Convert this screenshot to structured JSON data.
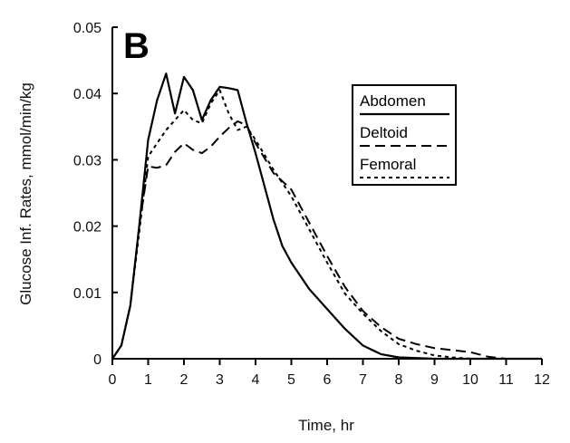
{
  "chart_data": {
    "type": "line",
    "panel_label": "B",
    "xlabel": "Time, hr",
    "ylabel": "Glucose Inf. Rates, mmol/min/kg",
    "xlim": [
      0,
      12
    ],
    "ylim": [
      0,
      0.05
    ],
    "x_ticks": [
      "0",
      "1",
      "2",
      "3",
      "4",
      "5",
      "6",
      "7",
      "8",
      "9",
      "10",
      "11",
      "12"
    ],
    "y_ticks": [
      "0",
      "0.01",
      "0.02",
      "0.03",
      "0.04",
      "0.05"
    ],
    "grid": false,
    "legend_position": "top-right",
    "series": [
      {
        "name": "Abdomen",
        "dash": "solid",
        "points": [
          [
            0,
            0
          ],
          [
            0.25,
            0.002
          ],
          [
            0.5,
            0.008
          ],
          [
            0.75,
            0.02
          ],
          [
            1.0,
            0.033
          ],
          [
            1.25,
            0.039
          ],
          [
            1.5,
            0.043
          ],
          [
            1.75,
            0.037
          ],
          [
            2.0,
            0.0425
          ],
          [
            2.25,
            0.0405
          ],
          [
            2.5,
            0.036
          ],
          [
            2.75,
            0.039
          ],
          [
            3.0,
            0.041
          ],
          [
            3.25,
            0.0408
          ],
          [
            3.5,
            0.0405
          ],
          [
            3.75,
            0.0355
          ],
          [
            4.0,
            0.031
          ],
          [
            4.25,
            0.026
          ],
          [
            4.5,
            0.021
          ],
          [
            4.75,
            0.017
          ],
          [
            5.0,
            0.0145
          ],
          [
            5.5,
            0.0105
          ],
          [
            6.0,
            0.0075
          ],
          [
            6.5,
            0.0045
          ],
          [
            7.0,
            0.002
          ],
          [
            7.5,
            0.0007
          ],
          [
            8.0,
            0.0002
          ],
          [
            9.0,
            0
          ],
          [
            12.0,
            0
          ]
        ]
      },
      {
        "name": "Deltoid",
        "dash": "long-dash",
        "points": [
          [
            0,
            0
          ],
          [
            0.25,
            0.002
          ],
          [
            0.5,
            0.008
          ],
          [
            0.75,
            0.02
          ],
          [
            1.0,
            0.029
          ],
          [
            1.25,
            0.0288
          ],
          [
            1.5,
            0.0292
          ],
          [
            1.75,
            0.0312
          ],
          [
            2.0,
            0.0325
          ],
          [
            2.25,
            0.0315
          ],
          [
            2.5,
            0.031
          ],
          [
            2.75,
            0.032
          ],
          [
            3.0,
            0.0335
          ],
          [
            3.25,
            0.0348
          ],
          [
            3.5,
            0.0358
          ],
          [
            3.75,
            0.0352
          ],
          [
            4.0,
            0.0325
          ],
          [
            4.5,
            0.028
          ],
          [
            5.0,
            0.0255
          ],
          [
            5.5,
            0.0205
          ],
          [
            6.0,
            0.0155
          ],
          [
            6.5,
            0.0108
          ],
          [
            7.0,
            0.0072
          ],
          [
            7.5,
            0.0048
          ],
          [
            8.0,
            0.003
          ],
          [
            8.5,
            0.0022
          ],
          [
            9.0,
            0.0016
          ],
          [
            9.5,
            0.0013
          ],
          [
            10.0,
            0.001
          ],
          [
            10.5,
            0.0003
          ],
          [
            11.0,
            0
          ],
          [
            12.0,
            0
          ]
        ]
      },
      {
        "name": "Femoral",
        "dash": "short-dash",
        "points": [
          [
            0,
            0
          ],
          [
            0.25,
            0.002
          ],
          [
            0.5,
            0.008
          ],
          [
            0.75,
            0.019
          ],
          [
            1.0,
            0.0305
          ],
          [
            1.25,
            0.0325
          ],
          [
            1.5,
            0.0345
          ],
          [
            1.75,
            0.036
          ],
          [
            2.0,
            0.0375
          ],
          [
            2.25,
            0.036
          ],
          [
            2.5,
            0.0355
          ],
          [
            2.75,
            0.0385
          ],
          [
            3.0,
            0.0405
          ],
          [
            3.25,
            0.037
          ],
          [
            3.5,
            0.0345
          ],
          [
            3.75,
            0.035
          ],
          [
            4.0,
            0.033
          ],
          [
            4.5,
            0.0285
          ],
          [
            5.0,
            0.0245
          ],
          [
            5.5,
            0.0195
          ],
          [
            6.0,
            0.0145
          ],
          [
            6.5,
            0.0098
          ],
          [
            7.0,
            0.0068
          ],
          [
            7.5,
            0.0042
          ],
          [
            8.0,
            0.0022
          ],
          [
            8.5,
            0.0012
          ],
          [
            9.0,
            0.0005
          ],
          [
            9.5,
            0.0002
          ],
          [
            10.0,
            0
          ],
          [
            12.0,
            0
          ]
        ]
      }
    ]
  }
}
